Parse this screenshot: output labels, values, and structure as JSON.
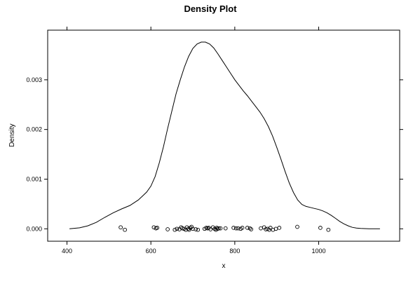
{
  "chart_data": {
    "type": "line",
    "title": "Density Plot",
    "xlabel": "x",
    "ylabel": "Density",
    "xlim": [
      354,
      1193
    ],
    "ylim": [
      -0.00025,
      0.004
    ],
    "x_ticks": [
      400,
      600,
      800,
      1000
    ],
    "x_tick_labels": [
      "400",
      "600",
      "800",
      "1000"
    ],
    "y_ticks": [
      0.0,
      0.001,
      0.002,
      0.003
    ],
    "y_tick_labels": [
      "0.000",
      "0.001",
      "0.002",
      "0.003"
    ],
    "grid": false,
    "legend": "none",
    "series": [
      {
        "x": [
          406,
          430,
          450,
          470,
          490,
          510,
          530,
          550,
          570,
          580,
          590,
          600,
          610,
          620,
          630,
          640,
          650,
          660,
          670,
          680,
          690,
          700,
          710,
          720,
          730,
          740,
          750,
          760,
          770,
          780,
          790,
          800,
          810,
          820,
          830,
          840,
          850,
          860,
          870,
          880,
          890,
          900,
          910,
          920,
          930,
          940,
          950,
          960,
          970,
          980,
          990,
          1000,
          1010,
          1020,
          1030,
          1040,
          1050,
          1060,
          1070,
          1080,
          1090,
          1100,
          1120,
          1146
        ],
        "y": [
          0.0,
          2e-05,
          6e-05,
          0.00013,
          0.00023,
          0.00032,
          0.0004,
          0.00047,
          0.00058,
          0.00066,
          0.00074,
          0.00086,
          0.00105,
          0.00133,
          0.00165,
          0.00202,
          0.00237,
          0.00272,
          0.003,
          0.00326,
          0.00347,
          0.00363,
          0.00372,
          0.00376,
          0.00376,
          0.00372,
          0.00364,
          0.00352,
          0.00339,
          0.00326,
          0.00313,
          0.003,
          0.00289,
          0.00278,
          0.00268,
          0.00257,
          0.00246,
          0.00235,
          0.00222,
          0.00206,
          0.00187,
          0.00164,
          0.0014,
          0.00115,
          0.00092,
          0.00073,
          0.00058,
          0.00049,
          0.00045,
          0.00043,
          0.00041,
          0.00039,
          0.00036,
          0.00032,
          0.00027,
          0.00021,
          0.00015,
          0.0001,
          6e-05,
          3e-05,
          1.5e-05,
          7e-06,
          2e-06,
          0.0
        ]
      }
    ],
    "rug_points": {
      "x": [
        528,
        538,
        607,
        612,
        615,
        640,
        657,
        662,
        668,
        672,
        675,
        679,
        683,
        686,
        689,
        691,
        694,
        697,
        700,
        707,
        712,
        728,
        732,
        735,
        738,
        742,
        748,
        752,
        755,
        757,
        759,
        762,
        766,
        778,
        797,
        803,
        808,
        814,
        818,
        830,
        836,
        839,
        862,
        870,
        874,
        878,
        882,
        885,
        891,
        898,
        906,
        949,
        1004,
        1023
      ],
      "y": [
        3e-05,
        -2e-05,
        3e-05,
        1e-05,
        2e-05,
        -1e-05,
        -2e-05,
        0.0,
        -1e-05,
        3e-05,
        1e-05,
        0.0,
        -2e-05,
        3e-05,
        0.0,
        -2e-05,
        2e-05,
        4e-05,
        0.0,
        -1e-05,
        -2e-05,
        0.0,
        2e-05,
        1e-05,
        2e-05,
        -1e-05,
        3e-05,
        0.0,
        -2e-05,
        2e-05,
        0.0,
        1e-05,
        1e-05,
        1e-05,
        2e-05,
        1e-05,
        1e-05,
        0.0,
        2e-05,
        2e-05,
        1e-05,
        -1e-05,
        1e-05,
        3e-05,
        -1e-05,
        0.0,
        -2e-05,
        2e-05,
        -2e-05,
        0.0,
        2e-05,
        4e-05,
        2e-05,
        -2e-05
      ]
    }
  }
}
